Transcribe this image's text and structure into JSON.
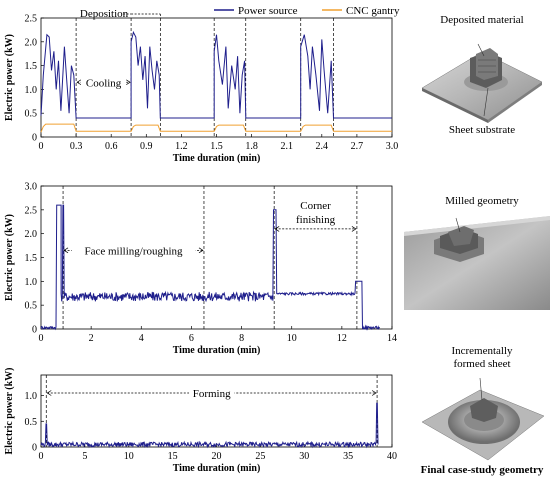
{
  "chart_data": [
    {
      "type": "line",
      "xlabel": "Time duration (min)",
      "ylabel": "Electric power (kW)",
      "xlim": [
        0,
        3.0
      ],
      "ylim": [
        0,
        2.5
      ],
      "xticks": [
        "0",
        "0.3",
        "0.6",
        "0.9",
        "1.2",
        "1.5",
        "1.8",
        "2.1",
        "2.4",
        "2.7",
        "3.0"
      ],
      "yticks": [
        "0",
        "0.5",
        "1.0",
        "1.5",
        "2.0",
        "2.5"
      ],
      "legend": "top-right",
      "series": [
        {
          "name": "Power source",
          "color": "#1f1f8c",
          "x": [
            0,
            0.02,
            0.05,
            0.07,
            0.09,
            0.11,
            0.13,
            0.15,
            0.17,
            0.2,
            0.22,
            0.24,
            0.26,
            0.28,
            0.3,
            0.3,
            0.35,
            0.45,
            0.55,
            0.65,
            0.77,
            0.77,
            0.79,
            0.81,
            0.83,
            0.85,
            0.87,
            0.89,
            0.91,
            0.93,
            0.95,
            0.97,
            0.99,
            1.01,
            1.02,
            1.02,
            1.1,
            1.2,
            1.3,
            1.4,
            1.48,
            1.48,
            1.5,
            1.52,
            1.55,
            1.58,
            1.6,
            1.63,
            1.66,
            1.68,
            1.7,
            1.72,
            1.74,
            1.75,
            1.75,
            1.85,
            1.95,
            2.05,
            2.15,
            2.22,
            2.22,
            2.25,
            2.28,
            2.3,
            2.32,
            2.35,
            2.38,
            2.4,
            2.42,
            2.45,
            2.48,
            2.5,
            2.5,
            2.6,
            2.7,
            2.8,
            2.9,
            3.0
          ],
          "y": [
            0.45,
            1.3,
            2.15,
            2.1,
            1.4,
            1.8,
            1.0,
            1.6,
            0.55,
            1.9,
            1.2,
            0.5,
            1.5,
            1.3,
            0.4,
            0.4,
            0.4,
            0.4,
            0.4,
            0.4,
            0.4,
            2.0,
            2.2,
            2.1,
            1.5,
            1.9,
            1.2,
            1.7,
            0.6,
            1.9,
            1.4,
            1.0,
            1.6,
            1.3,
            0.4,
            0.4,
            0.4,
            0.4,
            0.4,
            0.4,
            0.4,
            1.8,
            2.15,
            1.6,
            1.1,
            1.9,
            0.6,
            1.5,
            1.0,
            1.7,
            0.5,
            1.3,
            1.6,
            0.4,
            0.4,
            0.4,
            0.4,
            0.4,
            0.4,
            0.4,
            1.9,
            2.15,
            1.7,
            1.0,
            1.9,
            1.3,
            0.55,
            2.05,
            1.4,
            0.5,
            1.6,
            0.4,
            0.4,
            0.4,
            0.4,
            0.4,
            0.4,
            0.4
          ]
        },
        {
          "name": "CNC gantry",
          "color": "#f0a030",
          "x": [
            0,
            0.02,
            0.04,
            0.28,
            0.3,
            0.77,
            0.79,
            0.81,
            1.0,
            1.02,
            1.48,
            1.5,
            1.52,
            1.73,
            1.75,
            2.22,
            2.24,
            2.26,
            2.48,
            2.5,
            3.0
          ],
          "y": [
            0.1,
            0.22,
            0.27,
            0.27,
            0.12,
            0.12,
            0.22,
            0.25,
            0.25,
            0.12,
            0.12,
            0.22,
            0.25,
            0.25,
            0.12,
            0.12,
            0.22,
            0.25,
            0.25,
            0.12,
            0.12
          ]
        }
      ],
      "vlines": [
        0.3,
        0.77,
        1.02,
        1.48,
        1.75,
        2.22,
        2.5
      ],
      "annotations": [
        {
          "text": "Deposition",
          "kind": "bracket",
          "x1": 0.77,
          "x2": 1.02,
          "y": 2.5
        },
        {
          "text": "Cooling",
          "kind": "span",
          "x1": 0.3,
          "x2": 0.77,
          "y": 1.15
        }
      ]
    },
    {
      "type": "line",
      "xlabel": "Time duration (min)",
      "ylabel": "Electric power (kW)",
      "xlim": [
        0,
        14
      ],
      "ylim": [
        0,
        3.0
      ],
      "xticks": [
        "0",
        "2",
        "4",
        "6",
        "8",
        "10",
        "12",
        "14"
      ],
      "yticks": [
        "0",
        "0.5",
        "1.0",
        "1.5",
        "2.0",
        "2.5",
        "3.0"
      ],
      "series": [
        {
          "name": "Power source",
          "color": "#1f1f8c",
          "segments": [
            {
              "x0": 0.0,
              "x1": 0.8,
              "level": 0.03,
              "noise": 0.03
            },
            {
              "x0": 0.8,
              "x1": 9.25,
              "level": 0.68,
              "noise": 0.1
            },
            {
              "x0": 9.25,
              "x1": 12.55,
              "level": 0.74,
              "noise": 0.025
            },
            {
              "x0": 12.55,
              "x1": 13.5,
              "level": 0.03,
              "noise": 0.03
            }
          ],
          "spikes": [
            {
              "x": 0.88,
              "y": 2.6
            },
            {
              "x": 9.32,
              "y": 2.5
            },
            {
              "x": 12.6,
              "y": 1.0
            }
          ]
        }
      ],
      "vlines": [
        0.88,
        6.5,
        9.3,
        12.6
      ],
      "annotations": [
        {
          "text": "Face milling/roughing",
          "kind": "span",
          "x1": 0.88,
          "x2": 6.5,
          "y": 1.65
        },
        {
          "text": "Corner\nfinishing",
          "kind": "span",
          "x1": 9.3,
          "x2": 12.6,
          "y": 2.1
        }
      ]
    },
    {
      "type": "line",
      "xlabel": "Time duration (min)",
      "ylabel": "Electric power (kW)",
      "xlim": [
        0,
        40
      ],
      "ylim": [
        0,
        1.4
      ],
      "xticks": [
        "0",
        "5",
        "10",
        "15",
        "20",
        "25",
        "30",
        "35",
        "40"
      ],
      "yticks": [
        "0",
        "0.5",
        "1.0"
      ],
      "series": [
        {
          "name": "Power source",
          "color": "#1f1f8c",
          "segments": [
            {
              "x0": 0.0,
              "x1": 38.4,
              "level": 0.05,
              "noise": 0.045
            }
          ],
          "spikes": [
            {
              "x": 0.6,
              "y": 0.45
            },
            {
              "x": 38.3,
              "y": 0.85
            }
          ]
        }
      ],
      "vlines": [
        0.6,
        38.3
      ],
      "annotations": [
        {
          "text": "Forming",
          "kind": "span",
          "x1": 0.6,
          "x2": 38.3,
          "y": 1.05
        }
      ]
    }
  ],
  "photos": [
    {
      "label": "Deposited material",
      "secondary_label": "Sheet substrate"
    },
    {
      "label": "Milled geometry"
    },
    {
      "label": "Incrementally\nformed sheet"
    }
  ],
  "caption": "Final case-study geometry"
}
